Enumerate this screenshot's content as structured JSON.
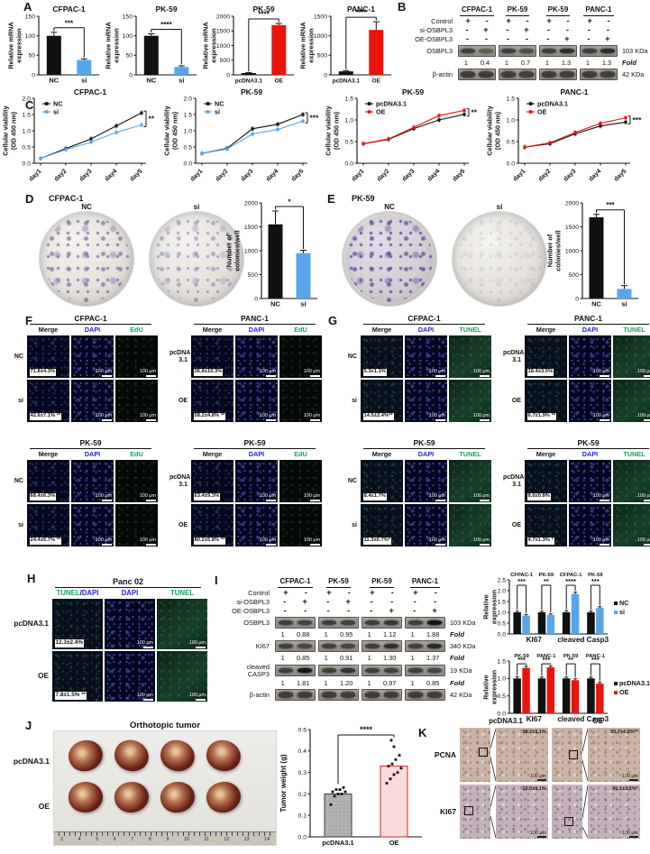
{
  "colors": {
    "black": "#111111",
    "blue": "#58A6E8",
    "red": "#E8150D",
    "dapi": "#2222DD",
    "green": "#12A45B",
    "pink_fill": "#F9DBDB",
    "pink_stroke": "#E03434"
  },
  "panelA": {
    "label": "A",
    "charts": [
      {
        "type": "bar",
        "title": "CFPAC-1",
        "ylabel": [
          "Relative mRNA",
          "expression"
        ],
        "ymax": 150,
        "dec": 0,
        "ticks": [
          0,
          50,
          100,
          150
        ],
        "categories": [
          "NC",
          "si"
        ],
        "values": [
          100,
          38
        ],
        "errors": [
          9,
          3
        ],
        "bar_colors": [
          "black",
          "blue"
        ],
        "sig": "***"
      },
      {
        "type": "bar",
        "title": "PK-59",
        "ylabel": [
          "Relative mRNA",
          "expression"
        ],
        "ymax": 150,
        "dec": 0,
        "ticks": [
          0,
          50,
          100,
          150
        ],
        "categories": [
          "NC",
          "si"
        ],
        "values": [
          100,
          20
        ],
        "errors": [
          5,
          3
        ],
        "bar_colors": [
          "black",
          "blue"
        ],
        "sig": "****"
      },
      {
        "type": "bar",
        "title": "PK-59",
        "ylabel": [
          "Relative mRNA",
          "expression"
        ],
        "ymax": 2000,
        "dec": 0,
        "ticks": [
          0,
          500,
          1000,
          1500,
          2000
        ],
        "categories": [
          "pcDNA3.1",
          "OE"
        ],
        "values": [
          60,
          1700
        ],
        "errors": [
          15,
          55
        ],
        "bar_colors": [
          "black",
          "red"
        ],
        "sig": "****"
      },
      {
        "type": "bar",
        "title": "PANC-1",
        "ylabel": [
          "Relative mRNA",
          "expression"
        ],
        "ymax": 1500,
        "dec": 0,
        "ticks": [
          0,
          500,
          1000,
          1500
        ],
        "categories": [
          "pcDNA3.1",
          "OE"
        ],
        "values": [
          90,
          1150
        ],
        "errors": [
          20,
          210
        ],
        "bar_colors": [
          "black",
          "red"
        ],
        "sig": "****"
      }
    ]
  },
  "panelB": {
    "label": "B",
    "fold_label": "Fold",
    "cell_lines": [
      "CFPAC-1",
      "PK-59",
      "PK-59",
      "PANC-1"
    ],
    "condition_rows": [
      {
        "label": "Control",
        "signs": [
          "+",
          "-",
          "+",
          "-",
          "+",
          "-",
          "+",
          "-"
        ]
      },
      {
        "label": "si-OSBPL3",
        "signs": [
          "-",
          "+",
          "-",
          "+",
          "-",
          "-",
          "-",
          "-"
        ]
      },
      {
        "label": "OE-OSBPL3",
        "signs": [
          "-",
          "-",
          "-",
          "-",
          "-",
          "+",
          "-",
          "+"
        ]
      }
    ],
    "bands": [
      {
        "label": "OSBPL3",
        "kda": "103 KDa",
        "fold": [
          "1",
          "0.4",
          "1",
          "0.7",
          "1",
          "1.3",
          "1",
          "1.3"
        ]
      },
      {
        "label": "β-actin",
        "kda": "42 KDa"
      }
    ]
  },
  "panelC": {
    "label": "C",
    "charts": [
      {
        "type": "line",
        "title": "CFPAC-1",
        "ylabel": [
          "Cellular viability",
          "(OD 450 nm)"
        ],
        "ymax": 2.0,
        "dec": 1,
        "ticks": [
          0,
          0.5,
          1.0,
          1.5,
          2.0
        ],
        "x": [
          "day1",
          "day2",
          "day3",
          "day4",
          "day5"
        ],
        "sig": "**",
        "series": [
          {
            "name": "NC",
            "color": "black",
            "values": [
              0.15,
              0.45,
              0.75,
              1.15,
              1.55
            ]
          },
          {
            "name": "si",
            "color": "blue",
            "values": [
              0.15,
              0.42,
              0.65,
              0.95,
              1.18
            ]
          }
        ]
      },
      {
        "type": "line",
        "title": "PK-59",
        "ylabel": [
          "Cellular viability",
          "(OD 450 nm)"
        ],
        "ymax": 2.0,
        "dec": 1,
        "ticks": [
          0,
          0.5,
          1.0,
          1.5,
          2.0
        ],
        "x": [
          "day1",
          "day2",
          "day3",
          "day4",
          "day5"
        ],
        "sig": "***",
        "series": [
          {
            "name": "NC",
            "color": "black",
            "values": [
              0.3,
              0.46,
              1.06,
              1.2,
              1.5
            ]
          },
          {
            "name": "si",
            "color": "blue",
            "values": [
              0.3,
              0.44,
              0.9,
              1.04,
              1.3
            ]
          }
        ]
      },
      {
        "type": "line",
        "title": "PK-59",
        "ylabel": [
          "Cellular viability",
          "(OD 450 nm)"
        ],
        "ymax": 1.5,
        "dec": 1,
        "ticks": [
          0,
          0.5,
          1.0,
          1.5
        ],
        "x": [
          "day1",
          "day2",
          "day3",
          "day4",
          "day5"
        ],
        "sig": "**",
        "series": [
          {
            "name": "pcDNA3.1",
            "color": "black",
            "values": [
              0.45,
              0.55,
              0.8,
              1.0,
              1.13
            ]
          },
          {
            "name": "OE",
            "color": "red",
            "values": [
              0.45,
              0.56,
              0.83,
              1.1,
              1.22
            ]
          }
        ]
      },
      {
        "type": "line",
        "title": "PANC-1",
        "ylabel": [
          "Cellular viability",
          "(OD 450 nm)"
        ],
        "ymax": 1.5,
        "dec": 1,
        "ticks": [
          0,
          0.5,
          1.0,
          1.5
        ],
        "x": [
          "day1",
          "day2",
          "day3",
          "day4",
          "day5"
        ],
        "sig": "***",
        "series": [
          {
            "name": "pcDNA3.1",
            "color": "black",
            "values": [
              0.37,
              0.45,
              0.68,
              0.86,
              0.95
            ]
          },
          {
            "name": "OE",
            "color": "red",
            "values": [
              0.37,
              0.47,
              0.71,
              0.92,
              1.05
            ]
          }
        ]
      }
    ]
  },
  "panelD": {
    "label": "D",
    "cell_line": "CFPAC-1",
    "plates": [
      {
        "label": "NC",
        "density": "high"
      },
      {
        "label": "si",
        "density": "medium"
      }
    ],
    "chart": {
      "type": "bar",
      "ylabel": [
        "Number of",
        "colonies/well"
      ],
      "ymax": 2000,
      "dec": 0,
      "ticks": [
        0,
        500,
        1000,
        1500,
        2000
      ],
      "categories": [
        "NC",
        "si"
      ],
      "values": [
        1550,
        950
      ],
      "errors": [
        280,
        60
      ],
      "bar_colors": [
        "black",
        "blue"
      ],
      "sig": "*"
    }
  },
  "panelE": {
    "label": "E",
    "cell_line": "PK-59",
    "plates": [
      {
        "label": "NC",
        "density": "veryhigh"
      },
      {
        "label": "si",
        "density": "low"
      }
    ],
    "chart": {
      "type": "bar",
      "ylabel": [
        "Number of",
        "colonies/well"
      ],
      "ymax": 2000,
      "dec": 0,
      "ticks": [
        0,
        500,
        1000,
        1500,
        2000
      ],
      "categories": [
        "NC",
        "si"
      ],
      "values": [
        1700,
        200
      ],
      "errors": [
        60,
        70
      ],
      "bar_colors": [
        "black",
        "blue"
      ],
      "sig": "***"
    }
  },
  "panelF": {
    "label": "F",
    "scale": "100 μm",
    "columns": [
      {
        "label": "Merge",
        "color": "#111111"
      },
      {
        "label": "DAPI",
        "color": "#2222DD"
      },
      {
        "label": "EdU",
        "color": "#12A45B"
      }
    ],
    "channels": [
      "merge",
      "dapi",
      "edu"
    ],
    "blocks": [
      {
        "cell_line": "CFPAC-1",
        "rows": [
          {
            "label": "NC",
            "value": "71.8±4.3%"
          },
          {
            "label": "si",
            "value": "42.6±7.1% **"
          }
        ]
      },
      {
        "cell_line": "PANC-1",
        "rows": [
          {
            "label": "pcDNA\n3.1",
            "value": "36.8±10.3%"
          },
          {
            "label": "OE",
            "value": "58.2±4.8% **"
          }
        ]
      },
      {
        "cell_line": "PK-59",
        "rows": [
          {
            "label": "NC",
            "value": "68.4±6.3%"
          },
          {
            "label": "si",
            "value": "24.4±5.7% **"
          }
        ]
      },
      {
        "cell_line": "PK-59",
        "rows": [
          {
            "label": "pcDNA\n3.1",
            "value": "63.4±9.3%"
          },
          {
            "label": "OE",
            "value": "80.2±5.8% **"
          }
        ]
      }
    ]
  },
  "panelG": {
    "label": "G",
    "scale": "100 μm",
    "columns": [
      {
        "label": "Merge",
        "color": "#111111"
      },
      {
        "label": "DAPI",
        "color": "#2222DD"
      },
      {
        "label": "TUNEL",
        "color": "#12A45B"
      }
    ],
    "channels": [
      "mergeg",
      "dapi",
      "tunel"
    ],
    "blocks": [
      {
        "cell_line": "CFPAC-1",
        "rows": [
          {
            "label": "NC",
            "value": "5.3±1.1%"
          },
          {
            "label": "si",
            "value": "14.5±2.4%**"
          }
        ]
      },
      {
        "cell_line": "PANC-1",
        "rows": [
          {
            "label": "pcDNA\n3.1",
            "value": "18.4±3.5%"
          },
          {
            "label": "OE",
            "value": "6.7±1.9% **"
          }
        ]
      },
      {
        "cell_line": "PK-59",
        "rows": [
          {
            "label": "NC",
            "value": "8.4±1.7%"
          },
          {
            "label": "si",
            "value": "11.3±0.7%*"
          }
        ]
      },
      {
        "cell_line": "PK-59",
        "rows": [
          {
            "label": "pcDNA\n3.1",
            "value": "8.6±0.8%"
          },
          {
            "label": "OE",
            "value": "4.7±1.3% *"
          }
        ]
      }
    ]
  },
  "panelH": {
    "label": "H",
    "scale": "100 μm",
    "columns": [
      {
        "parts": [
          {
            "text": "TUNEL",
            "color": "#12A45B"
          },
          {
            "text": "/",
            "color": "#111111"
          },
          {
            "text": "DAPI",
            "color": "#2222DD"
          }
        ]
      },
      {
        "label": "DAPI",
        "color": "#2222DD"
      },
      {
        "label": "TUNEL",
        "color": "#12A45B"
      }
    ],
    "channels": [
      "mergeg",
      "dapi",
      "tunel"
    ],
    "block": {
      "cell_line": "Panc 02",
      "rows": [
        {
          "label": "pcDNA3.1",
          "value": "12.3±2.4%"
        },
        {
          "label": "OE",
          "value": "7.8±1.5% **"
        }
      ]
    }
  },
  "panelI": {
    "label": "I",
    "fold_label": "Fold",
    "cell_lines": [
      "CFPAC-1",
      "PK-59",
      "PK-59",
      "PANC-1"
    ],
    "condition_rows": [
      {
        "label": "Control",
        "signs": [
          "+",
          "-",
          "+",
          "-",
          "+",
          "-",
          "+",
          "-"
        ]
      },
      {
        "label": "si-OSBPL3",
        "signs": [
          "-",
          "+",
          "-",
          "+",
          "-",
          "-",
          "-",
          "-"
        ]
      },
      {
        "label": "OE-OSBPL3",
        "signs": [
          "-",
          "-",
          "-",
          "-",
          "-",
          "+",
          "-",
          "+"
        ]
      }
    ],
    "bands": [
      {
        "label": "OSBPL3",
        "kda": "103 KDa",
        "fold": [
          "1",
          "0.88",
          "1",
          "0.95",
          "1",
          "1.12",
          "1",
          "1.88"
        ]
      },
      {
        "label": "KI67",
        "kda": "340 KDa",
        "fold": [
          "1",
          "0.85",
          "1",
          "0.91",
          "1",
          "1.30",
          "1",
          "1.37"
        ]
      },
      {
        "label": "cleaved\nCASP3",
        "kda": "19 KDa",
        "fold": [
          "1",
          "1.81",
          "1",
          "1.20",
          "1",
          "0.97",
          "1",
          "0.85"
        ]
      },
      {
        "label": "β-actin",
        "kda": "42 KDa"
      }
    ],
    "charts": [
      {
        "type": "grouped_bar",
        "ylabel": [
          "Relative",
          "expression"
        ],
        "ymax": 2.5,
        "dec": 1,
        "ticks": [
          0,
          0.5,
          1.0,
          1.5,
          2.0,
          2.5
        ],
        "group_labels": [
          "CFPAC-1",
          "PK-59",
          "CFPAC-1",
          "PK-59"
        ],
        "x_groups": [
          "KI67",
          "cleaved Casp3"
        ],
        "sigs": [
          "***",
          "**",
          "****",
          "***"
        ],
        "errors": [
          0.05,
          0.05,
          0.08,
          0.06
        ],
        "series": [
          {
            "name": "NC",
            "color": "black",
            "values": [
              1,
              1,
              1,
              1
            ]
          },
          {
            "name": "si",
            "color": "blue",
            "values": [
              0.85,
              0.88,
              1.85,
              1.2
            ]
          }
        ]
      },
      {
        "type": "grouped_bar",
        "ylabel": [
          "Relative",
          "expression"
        ],
        "ymax": 1.5,
        "dec": 1,
        "ticks": [
          0,
          0.5,
          1.0,
          1.5
        ],
        "group_labels": [
          "PK-59",
          "PANC-1",
          "PK-59",
          "PANC-1"
        ],
        "x_groups": [
          "KI67",
          "cleaved Casp3"
        ],
        "sigs": [
          "***",
          "***",
          "**",
          "***"
        ],
        "errors": [
          0.05,
          0.04,
          0.04,
          0.04
        ],
        "series": [
          {
            "name": "pcDNA3.1",
            "color": "black",
            "values": [
              1,
              1,
              1,
              1
            ]
          },
          {
            "name": "OE",
            "color": "red",
            "values": [
              1.3,
              1.32,
              0.95,
              0.85
            ]
          }
        ]
      }
    ]
  },
  "panelJ": {
    "label": "J",
    "title": "Orthotopic tumor",
    "row_labels": [
      "pcDNA3.1",
      "OE"
    ],
    "ruler_numbers": [
      "3",
      "4",
      "5",
      "6",
      "7",
      "8",
      "9",
      "10",
      "11",
      "12",
      "13",
      "14"
    ],
    "chart": {
      "type": "scatter_bar",
      "ylabel": "Tumor weight (g)",
      "ymax": 0.5,
      "dec": 1,
      "ticks": [
        0,
        0.1,
        0.2,
        0.3,
        0.4,
        0.5
      ],
      "categories": [
        "pcDNA3.1",
        "OE"
      ],
      "bar_means": [
        0.2,
        0.33
      ],
      "sig": "****",
      "dots": [
        [
          0.15,
          0.19,
          0.2,
          0.2,
          0.21,
          0.21,
          0.22,
          0.22,
          0.23
        ],
        [
          0.25,
          0.27,
          0.29,
          0.3,
          0.32,
          0.33,
          0.34,
          0.36,
          0.38,
          0.42,
          0.45
        ]
      ]
    }
  },
  "panelK": {
    "label": "K",
    "scale": "100 μm",
    "col_labels": [
      "pcDNA3.1",
      "OE"
    ],
    "rows": [
      {
        "label": "PCNA",
        "values": [
          "38.2±3.1%",
          "53.7±4.2%**"
        ]
      },
      {
        "label": "KI67",
        "values": [
          "22.5±4.1%",
          "26.1±2.5%*"
        ]
      }
    ]
  }
}
